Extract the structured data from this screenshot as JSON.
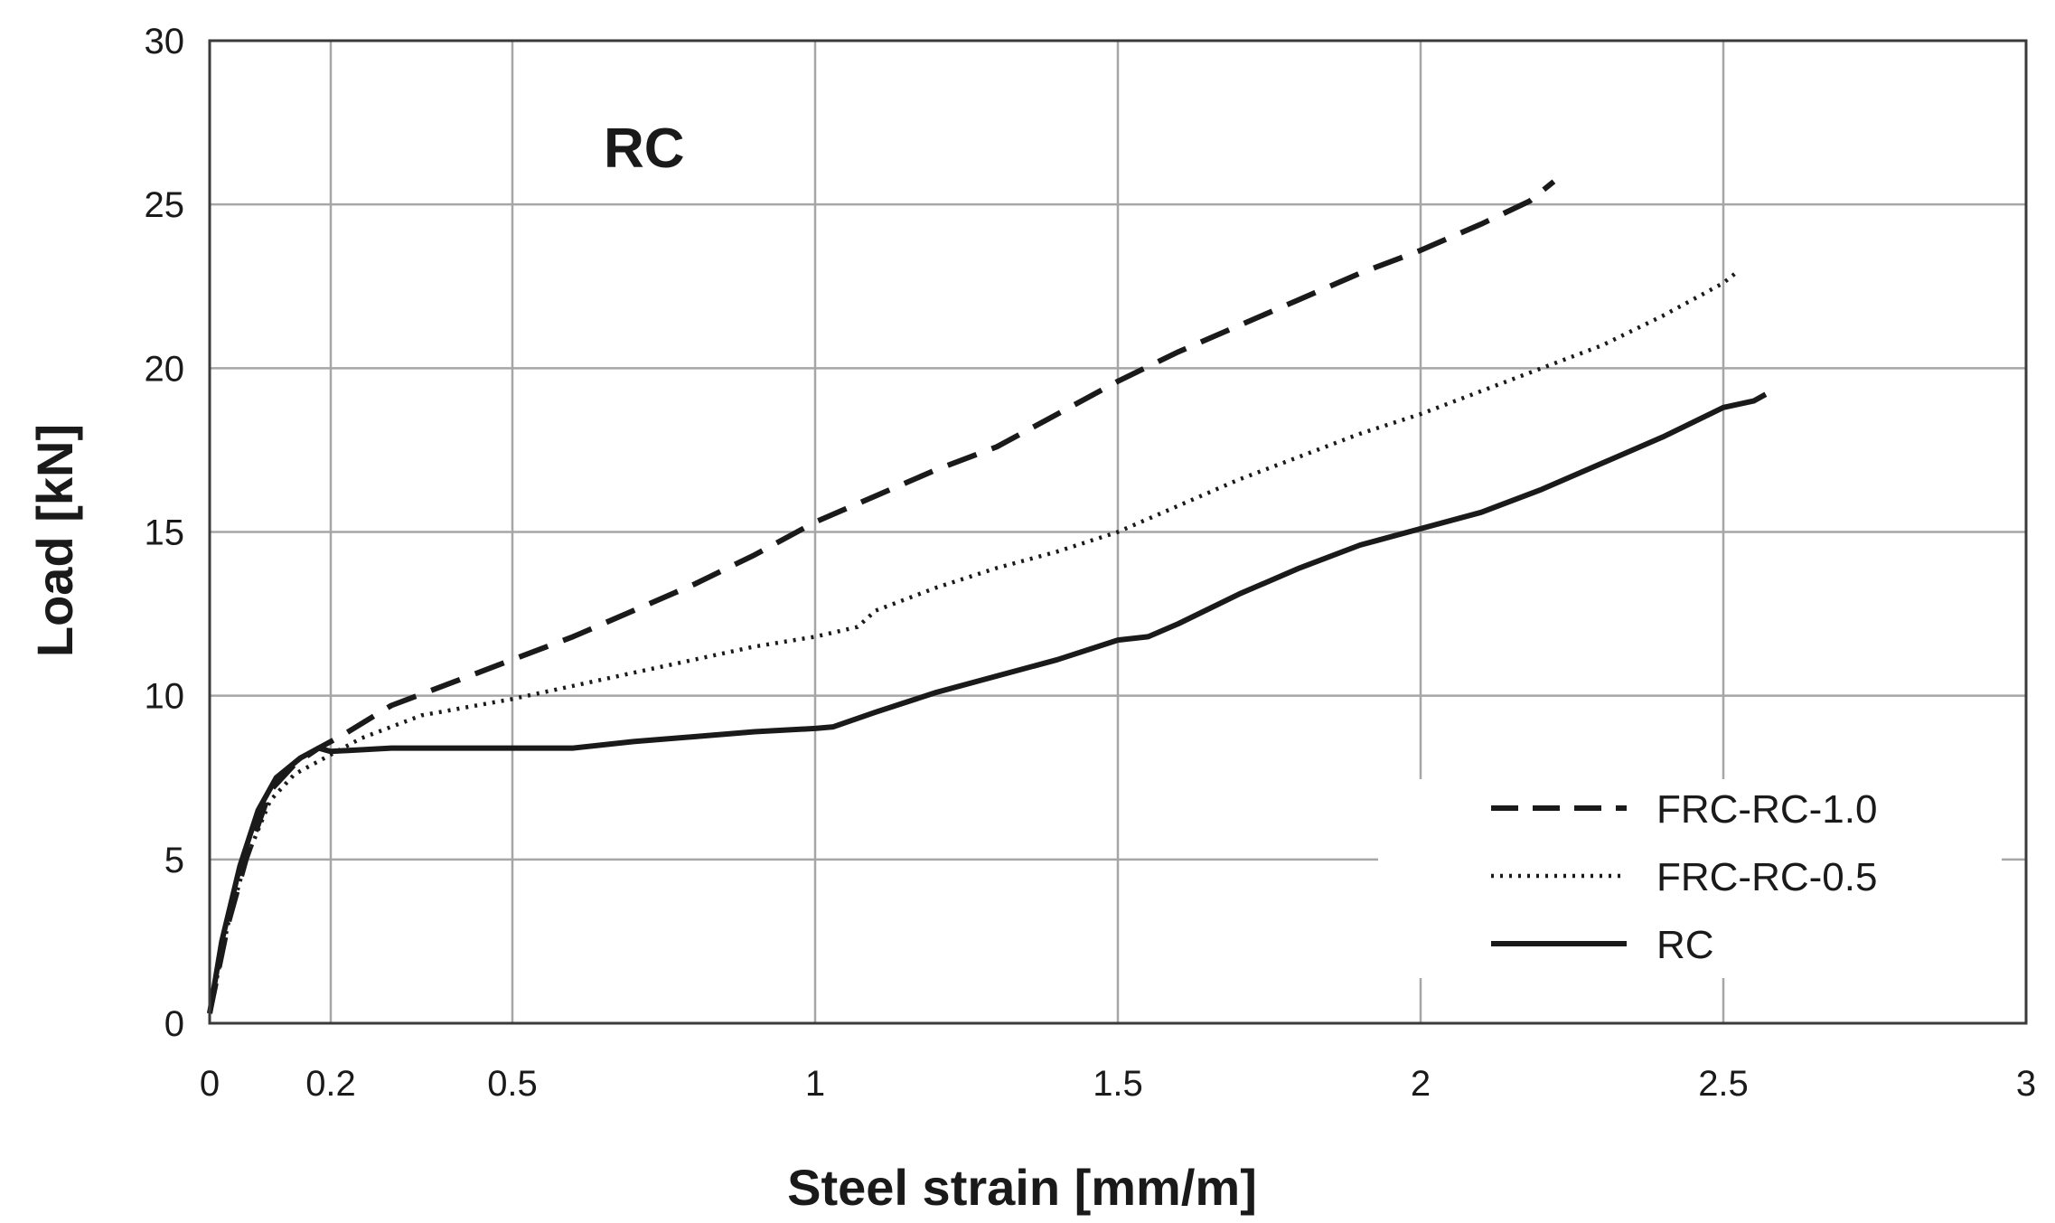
{
  "chart_data": {
    "type": "line",
    "title": "",
    "annotation": "RC",
    "xlabel": "Steel strain [mm/m]",
    "ylabel": "Load [kN]",
    "xlim": [
      0,
      3
    ],
    "ylim": [
      0,
      30
    ],
    "x_ticks": [
      {
        "value": 0,
        "label": "0"
      },
      {
        "value": 0.2,
        "label": "0.2"
      },
      {
        "value": 0.5,
        "label": "0.5"
      },
      {
        "value": 1,
        "label": "1"
      },
      {
        "value": 1.5,
        "label": "1.5"
      },
      {
        "value": 2,
        "label": "2"
      },
      {
        "value": 2.5,
        "label": "2.5"
      },
      {
        "value": 3,
        "label": "3"
      }
    ],
    "y_ticks": [
      {
        "value": 0,
        "label": "0"
      },
      {
        "value": 5,
        "label": "5"
      },
      {
        "value": 10,
        "label": "10"
      },
      {
        "value": 15,
        "label": "15"
      },
      {
        "value": 20,
        "label": "20"
      },
      {
        "value": 25,
        "label": "25"
      },
      {
        "value": 30,
        "label": "30"
      }
    ],
    "grid": true,
    "legend_position": "bottom-right",
    "series": [
      {
        "name": "FRC-RC-1.0",
        "style": "dashed",
        "color": "#1a1a1a",
        "points": [
          [
            0,
            0.3
          ],
          [
            0.03,
            3
          ],
          [
            0.06,
            5
          ],
          [
            0.1,
            7.1
          ],
          [
            0.14,
            7.9
          ],
          [
            0.18,
            8.4
          ],
          [
            0.22,
            8.8
          ],
          [
            0.3,
            9.7
          ],
          [
            0.4,
            10.4
          ],
          [
            0.5,
            11.1
          ],
          [
            0.6,
            11.8
          ],
          [
            0.7,
            12.6
          ],
          [
            0.8,
            13.4
          ],
          [
            0.9,
            14.3
          ],
          [
            1.0,
            15.3
          ],
          [
            1.1,
            16.1
          ],
          [
            1.2,
            16.9
          ],
          [
            1.3,
            17.6
          ],
          [
            1.4,
            18.6
          ],
          [
            1.5,
            19.6
          ],
          [
            1.6,
            20.5
          ],
          [
            1.7,
            21.3
          ],
          [
            1.8,
            22.1
          ],
          [
            1.9,
            22.9
          ],
          [
            2.0,
            23.6
          ],
          [
            2.1,
            24.4
          ],
          [
            2.18,
            25.1
          ],
          [
            2.22,
            25.7
          ]
        ]
      },
      {
        "name": "FRC-RC-0.5",
        "style": "dotted",
        "color": "#1a1a1a",
        "points": [
          [
            0,
            0.3
          ],
          [
            0.03,
            3
          ],
          [
            0.06,
            5
          ],
          [
            0.1,
            6.8
          ],
          [
            0.14,
            7.6
          ],
          [
            0.18,
            8.0
          ],
          [
            0.25,
            8.7
          ],
          [
            0.35,
            9.4
          ],
          [
            0.5,
            9.9
          ],
          [
            0.6,
            10.3
          ],
          [
            0.7,
            10.7
          ],
          [
            0.8,
            11.1
          ],
          [
            0.9,
            11.5
          ],
          [
            1.0,
            11.8
          ],
          [
            1.07,
            12.1
          ],
          [
            1.1,
            12.6
          ],
          [
            1.2,
            13.3
          ],
          [
            1.3,
            13.9
          ],
          [
            1.4,
            14.4
          ],
          [
            1.5,
            15.0
          ],
          [
            1.6,
            15.8
          ],
          [
            1.7,
            16.6
          ],
          [
            1.8,
            17.3
          ],
          [
            1.9,
            18.0
          ],
          [
            2.0,
            18.6
          ],
          [
            2.1,
            19.3
          ],
          [
            2.2,
            20.0
          ],
          [
            2.3,
            20.7
          ],
          [
            2.4,
            21.6
          ],
          [
            2.5,
            22.6
          ],
          [
            2.52,
            22.9
          ]
        ]
      },
      {
        "name": "RC",
        "style": "solid",
        "color": "#1a1a1a",
        "points": [
          [
            0,
            0.3
          ],
          [
            0.02,
            2.5
          ],
          [
            0.05,
            4.8
          ],
          [
            0.08,
            6.5
          ],
          [
            0.11,
            7.5
          ],
          [
            0.15,
            8.1
          ],
          [
            0.18,
            8.4
          ],
          [
            0.2,
            8.3
          ],
          [
            0.3,
            8.4
          ],
          [
            0.5,
            8.4
          ],
          [
            0.6,
            8.4
          ],
          [
            0.7,
            8.6
          ],
          [
            0.8,
            8.75
          ],
          [
            0.9,
            8.9
          ],
          [
            1.0,
            9.0
          ],
          [
            1.03,
            9.05
          ],
          [
            1.1,
            9.5
          ],
          [
            1.2,
            10.1
          ],
          [
            1.3,
            10.6
          ],
          [
            1.4,
            11.1
          ],
          [
            1.5,
            11.7
          ],
          [
            1.55,
            11.8
          ],
          [
            1.6,
            12.2
          ],
          [
            1.7,
            13.1
          ],
          [
            1.8,
            13.9
          ],
          [
            1.9,
            14.6
          ],
          [
            2.0,
            15.1
          ],
          [
            2.1,
            15.6
          ],
          [
            2.2,
            16.3
          ],
          [
            2.3,
            17.1
          ],
          [
            2.4,
            17.9
          ],
          [
            2.5,
            18.8
          ],
          [
            2.55,
            19.0
          ],
          [
            2.57,
            19.2
          ]
        ]
      }
    ]
  }
}
